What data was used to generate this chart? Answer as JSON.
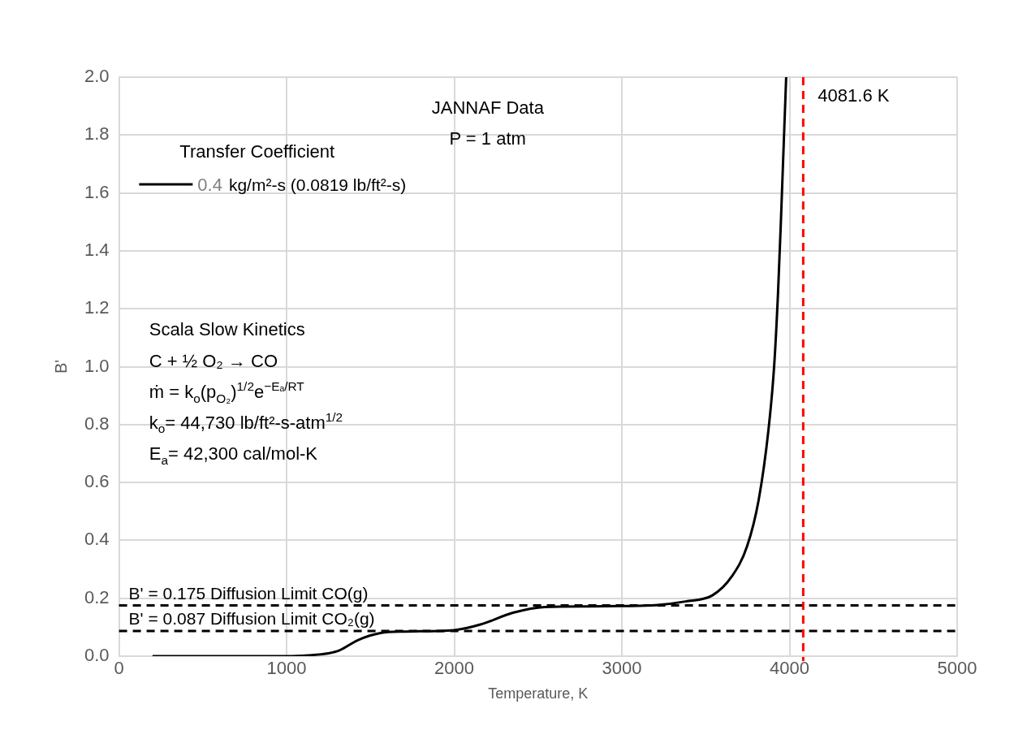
{
  "chart_data": {
    "type": "line",
    "xlabel": "Temperature, K",
    "ylabel": "B'",
    "legend_title": "Transfer Coefficient",
    "legend": "top left",
    "grid": true,
    "marker": "none",
    "line_style": "solid",
    "xlim": [
      0,
      5000
    ],
    "xticks": [
      0,
      1000,
      2000,
      3000,
      4000,
      5000
    ],
    "ylim": [
      0,
      2
    ],
    "yticks": [
      {
        "value": 0,
        "label": "0.0"
      },
      {
        "value": 0.2,
        "label": "0.2"
      },
      {
        "value": 0.4,
        "label": "0.4"
      },
      {
        "value": 0.6,
        "label": "0.6"
      },
      {
        "value": 0.8,
        "label": "0.8"
      },
      {
        "value": 1,
        "label": "1.0"
      },
      {
        "value": 1.2,
        "label": "1.2"
      },
      {
        "value": 1.4,
        "label": "1.4"
      },
      {
        "value": 1.6,
        "label": "1.6"
      },
      {
        "value": 1.8,
        "label": "1.8"
      },
      {
        "value": 2,
        "label": "2.0"
      }
    ],
    "series": [
      {
        "name": "0.4",
        "color": "#000000",
        "x": [
          200,
          600,
          1000,
          1130,
          1250,
          1315,
          1427,
          1560,
          1700,
          2000,
          2160,
          2350,
          2540,
          2800,
          3000,
          3200,
          3379,
          3540,
          3655,
          3747,
          3816,
          3874,
          3908,
          3931,
          3949,
          3966,
          3980
        ],
        "values": [
          0,
          0,
          0,
          0.003,
          0.01,
          0.02,
          0.056,
          0.08,
          0.085,
          0.09,
          0.11,
          0.15,
          0.17,
          0.172,
          0.173,
          0.176,
          0.189,
          0.21,
          0.275,
          0.38,
          0.54,
          0.78,
          1.0,
          1.25,
          1.51,
          1.78,
          2.0
        ]
      }
    ],
    "ref_lines": [
      {
        "axis": "y",
        "value": 0.175,
        "label": "B' = 0.175 Diffusion Limit CO(g)",
        "color": "#000000",
        "line_style": "dashed"
      },
      {
        "axis": "y",
        "value": 0.087,
        "label": "B' = 0.087 Diffusion Limit CO₂(g)",
        "color": "#000000",
        "line_style": "dashed"
      },
      {
        "axis": "x",
        "value": 4081.6,
        "label": "4081.6 K",
        "color": "#ff0000",
        "line_style": "dashed"
      }
    ],
    "annotations": [
      "kg/m²-s (0.0819 lb/ft²-s)",
      "JANNAF Data",
      "P = 1 atm",
      "Scala Slow Kinetics",
      "C + ½ O₂ → CO",
      "ṁ = k$_{o}$(p$_{O₂}$)$^{1/2}$e$^{−Eₐ/RT}$",
      "k$_{o}$= 44,730 lb/ft²-s-atm$^{1/2}$",
      "E$_{a}$= 42,300 cal/mol-K"
    ]
  }
}
